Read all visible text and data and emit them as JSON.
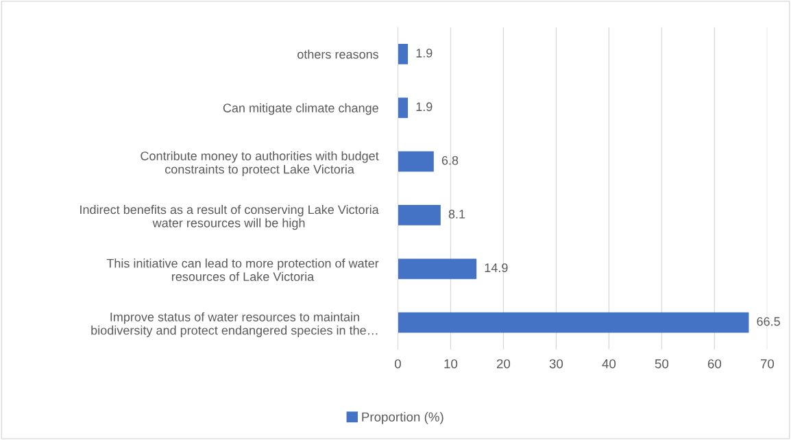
{
  "chart_data": {
    "type": "bar",
    "orientation": "horizontal",
    "categories": [
      "others reasons",
      "Can mitigate climate change",
      "Contribute money to authorities with budget\nconstraints to protect Lake Victoria",
      "Indirect benefits as a result of conserving Lake Victoria\nwater resources will be high",
      "This initiative can lead to more protection of water\nresources of Lake Victoria",
      "Improve status of water resources to maintain\nbiodiversity and protect endangered species in the…"
    ],
    "series": [
      {
        "name": "Proportion (%)",
        "color": "#4472c4",
        "values": [
          1.9,
          1.9,
          6.8,
          8.1,
          14.9,
          66.5
        ]
      }
    ],
    "xlim": [
      0,
      70
    ],
    "xticks": [
      0,
      10,
      20,
      30,
      40,
      50,
      60,
      70
    ],
    "grid": "x",
    "legend": "bottom",
    "data_labels": true
  }
}
